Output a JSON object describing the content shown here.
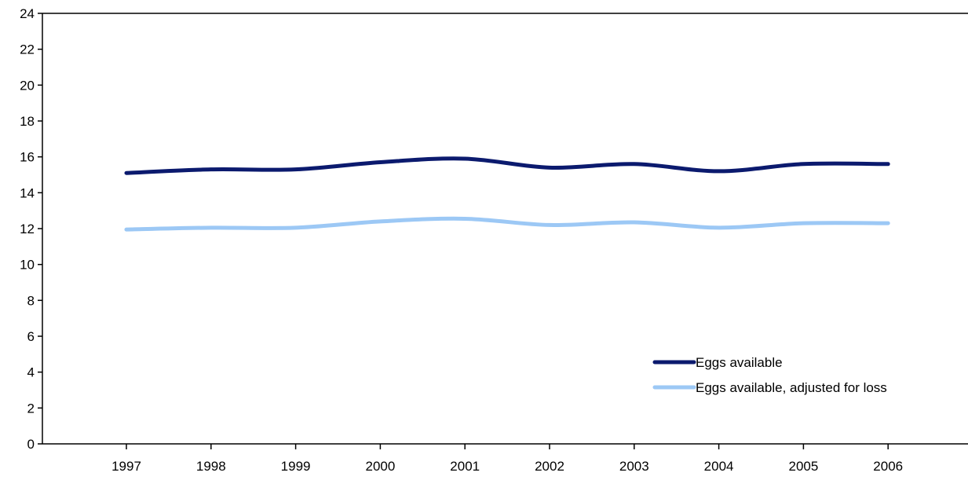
{
  "chart_data": {
    "type": "line",
    "title": "",
    "xlabel": "",
    "ylabel": "",
    "categories": [
      "1997",
      "1998",
      "1999",
      "2000",
      "2001",
      "2002",
      "2003",
      "2004",
      "2005",
      "2006"
    ],
    "ylim": [
      0,
      24
    ],
    "yticks": [
      "0",
      "2",
      "4",
      "6",
      "8",
      "10",
      "12",
      "14",
      "16",
      "18",
      "20",
      "22",
      "24"
    ],
    "grid": false,
    "legend_position": "bottom-right",
    "series": [
      {
        "name": "Eggs available",
        "color": "#0b1a6e",
        "values": [
          15.1,
          15.3,
          15.3,
          15.7,
          15.9,
          15.4,
          15.6,
          15.2,
          15.6,
          15.6
        ]
      },
      {
        "name": "Eggs available, adjusted for loss",
        "color": "#9cc8f5",
        "values": [
          11.95,
          12.05,
          12.05,
          12.4,
          12.55,
          12.2,
          12.35,
          12.05,
          12.3,
          12.3
        ]
      }
    ]
  }
}
